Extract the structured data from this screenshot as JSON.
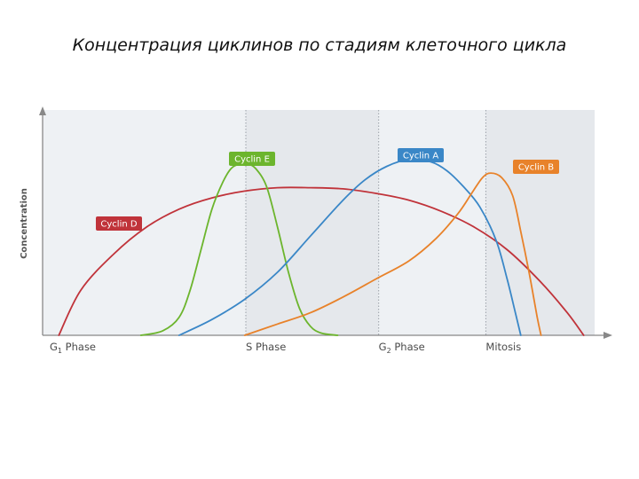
{
  "slide": {
    "title": "Концентрация циклинов по стадиям клеточного цикла"
  },
  "chart_data": {
    "type": "line",
    "title": "Концентрация циклинов по стадиям клеточного цикла",
    "ylabel": "Concentration",
    "xlabel": "",
    "xlim": [
      0,
      100
    ],
    "ylim": [
      0,
      1
    ],
    "grid": false,
    "x_ticks": [
      {
        "x": 0,
        "label_main": "G",
        "label_sub": "1",
        "label_rest": " Phase"
      },
      {
        "x": 36.2,
        "label_main": "S Phase",
        "label_sub": "",
        "label_rest": ""
      },
      {
        "x": 60.5,
        "label_main": "G",
        "label_sub": "2",
        "label_rest": " Phase"
      },
      {
        "x": 80.1,
        "label_main": "Mitosis",
        "label_sub": "",
        "label_rest": ""
      }
    ],
    "phase_bands": [
      {
        "from": 0,
        "to": 36.2,
        "shade": "#eef1f4"
      },
      {
        "from": 36.2,
        "to": 60.5,
        "shade": "#e5e8ec"
      },
      {
        "from": 60.5,
        "to": 80.1,
        "shade": "#eef1f4"
      },
      {
        "from": 80.1,
        "to": 100,
        "shade": "#e5e8ec"
      }
    ],
    "series": [
      {
        "name": "Cyclin D",
        "color": "#c0333a",
        "x": [
          2,
          6,
          12,
          18,
          24,
          30,
          36,
          42,
          48,
          54,
          60,
          66,
          72,
          78,
          84,
          90,
          95,
          98
        ],
        "y": [
          0.0,
          0.2,
          0.36,
          0.48,
          0.56,
          0.61,
          0.64,
          0.655,
          0.655,
          0.65,
          0.63,
          0.6,
          0.55,
          0.48,
          0.38,
          0.24,
          0.1,
          0.0
        ]
      },
      {
        "name": "Cyclin E",
        "color": "#6cb52d",
        "x": [
          17,
          21,
          24,
          26,
          28,
          30,
          32,
          33.5,
          35,
          36.5,
          38,
          40,
          42,
          44,
          46,
          48,
          50,
          53
        ],
        "y": [
          0.0,
          0.02,
          0.08,
          0.2,
          0.38,
          0.56,
          0.68,
          0.74,
          0.76,
          0.76,
          0.74,
          0.66,
          0.48,
          0.28,
          0.12,
          0.04,
          0.01,
          0.0
        ]
      },
      {
        "name": "Cyclin A",
        "color": "#3a87c7",
        "x": [
          24,
          30,
          36,
          42,
          48,
          54,
          58,
          62,
          66,
          70,
          73,
          76,
          79,
          82,
          84,
          85.5,
          86.5
        ],
        "y": [
          0.0,
          0.07,
          0.16,
          0.28,
          0.44,
          0.6,
          0.69,
          0.75,
          0.78,
          0.77,
          0.73,
          0.66,
          0.57,
          0.42,
          0.25,
          0.1,
          0.0
        ]
      },
      {
        "name": "Cyclin B",
        "color": "#e8822a",
        "x": [
          36,
          42,
          48,
          54,
          60,
          66,
          71,
          75,
          77.5,
          79.5,
          81,
          83,
          85,
          86.5,
          88,
          89.5,
          90.2
        ],
        "y": [
          0.0,
          0.05,
          0.1,
          0.17,
          0.25,
          0.33,
          0.43,
          0.54,
          0.63,
          0.7,
          0.72,
          0.7,
          0.62,
          0.46,
          0.28,
          0.08,
          0.0
        ]
      }
    ],
    "legend": [
      {
        "label": "Cyclin D",
        "series": "Cyclin D"
      },
      {
        "label": "Cyclin E",
        "series": "Cyclin E"
      },
      {
        "label": "Cyclin A",
        "series": "Cyclin A"
      },
      {
        "label": "Cyclin B",
        "series": "Cyclin B"
      }
    ]
  }
}
